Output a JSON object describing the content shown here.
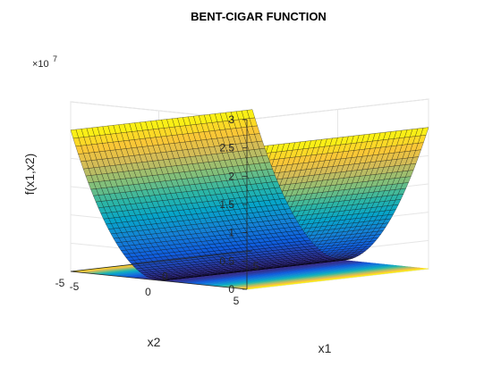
{
  "chart_data": {
    "type": "surface",
    "title": "BENT-CIGAR FUNCTION",
    "xlabel": "x1",
    "ylabel": "x2",
    "zlabel": "f(x1,x2)",
    "function": "x1^2 + 1e6 * x2^2",
    "x_range": [
      -5,
      5
    ],
    "y_range": [
      -5,
      5
    ],
    "zlim": [
      0,
      30000000
    ],
    "z_exponent_label": "×10",
    "z_exponent_power": "7",
    "x_ticks": [
      "-5",
      "0",
      "5"
    ],
    "y_ticks": [
      "5",
      "0",
      "-5"
    ],
    "z_ticks": [
      "0",
      "0.5",
      "1",
      "1.5",
      "2",
      "2.5",
      "3"
    ],
    "colormap": "parula",
    "colormap_stops": [
      "#352a87",
      "#0f5cdd",
      "#1481d6",
      "#06a4ca",
      "#2eb7a4",
      "#87bf77",
      "#d1bb59",
      "#fec832",
      "#f9fb0e"
    ],
    "contour_projection": true,
    "grid": true
  }
}
